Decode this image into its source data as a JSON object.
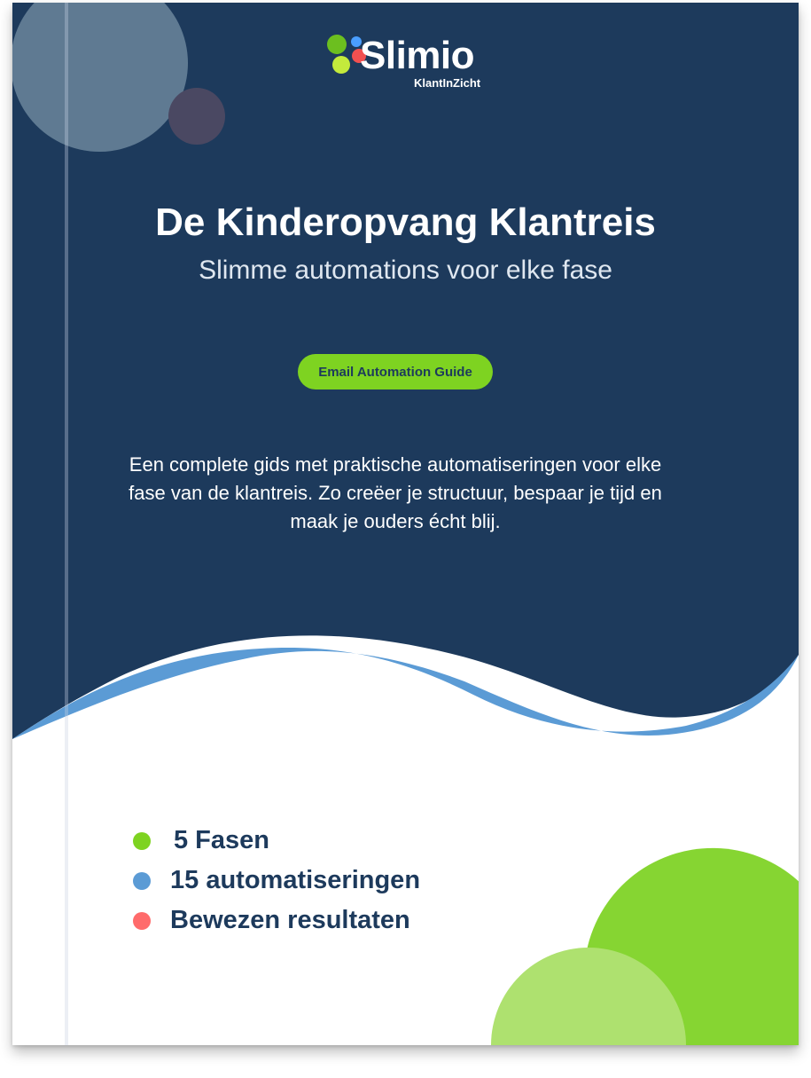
{
  "logo": {
    "name": "Slimio",
    "tagline": "KlantInZicht"
  },
  "cover": {
    "title": "De Kinderopvang Klantreis",
    "subtitle": "Slimme automations voor elke fase",
    "badge": "Email Automation Guide",
    "description": "Een complete gids met praktische automatiseringen voor elke fase van de klantreis. Zo creëer je structuur, bespaar je tijd en maak je ouders écht blij.",
    "highlights": [
      {
        "label": "5 Fasen",
        "color": "#7ed321"
      },
      {
        "label": "15 automatiseringen",
        "color": "#5b9bd5"
      },
      {
        "label": "Bewezen resultaten",
        "color": "#ff6b6b"
      }
    ]
  },
  "colors": {
    "navy": "#1d3a5c",
    "wave_blue": "#5b9bd5",
    "green": "#86d532",
    "light_green": "#aee16f"
  }
}
